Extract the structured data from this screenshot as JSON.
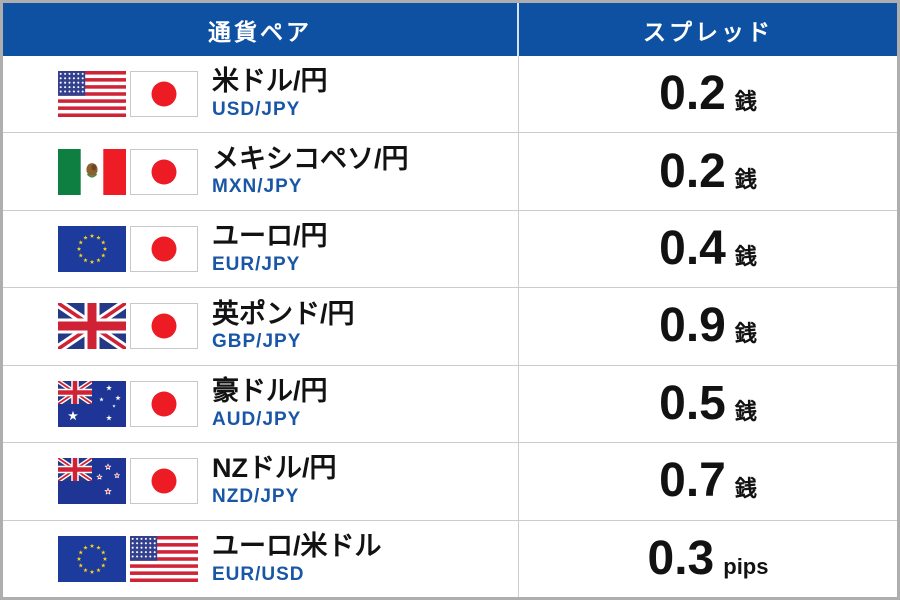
{
  "header": {
    "pair_label": "通貨ペア",
    "spread_label": "スプレッド"
  },
  "rows": [
    {
      "name": "米ドル/円",
      "code": "USD/JPY",
      "value": "0.2",
      "unit": "銭",
      "flags": [
        "us",
        "jp"
      ]
    },
    {
      "name": "メキシコペソ/円",
      "code": "MXN/JPY",
      "value": "0.2",
      "unit": "銭",
      "flags": [
        "mx",
        "jp"
      ]
    },
    {
      "name": "ユーロ/円",
      "code": "EUR/JPY",
      "value": "0.4",
      "unit": "銭",
      "flags": [
        "eu",
        "jp"
      ]
    },
    {
      "name": "英ポンド/円",
      "code": "GBP/JPY",
      "value": "0.9",
      "unit": "銭",
      "flags": [
        "gb",
        "jp"
      ]
    },
    {
      "name": "豪ドル/円",
      "code": "AUD/JPY",
      "value": "0.5",
      "unit": "銭",
      "flags": [
        "au",
        "jp"
      ]
    },
    {
      "name": "NZドル/円",
      "code": "NZD/JPY",
      "value": "0.7",
      "unit": "銭",
      "flags": [
        "nz",
        "jp"
      ]
    },
    {
      "name": "ユーロ/米ドル",
      "code": "EUR/USD",
      "value": "0.3",
      "unit": "pips",
      "flags": [
        "eu",
        "us"
      ]
    }
  ],
  "colors": {
    "header_bg": "#0e51a3",
    "header_text": "#ffffff",
    "pair_name_text": "#121212",
    "pair_code_text": "#1956a6",
    "spread_text": "#121212",
    "divider": "#cccccc",
    "frame": "#aeaeae"
  }
}
